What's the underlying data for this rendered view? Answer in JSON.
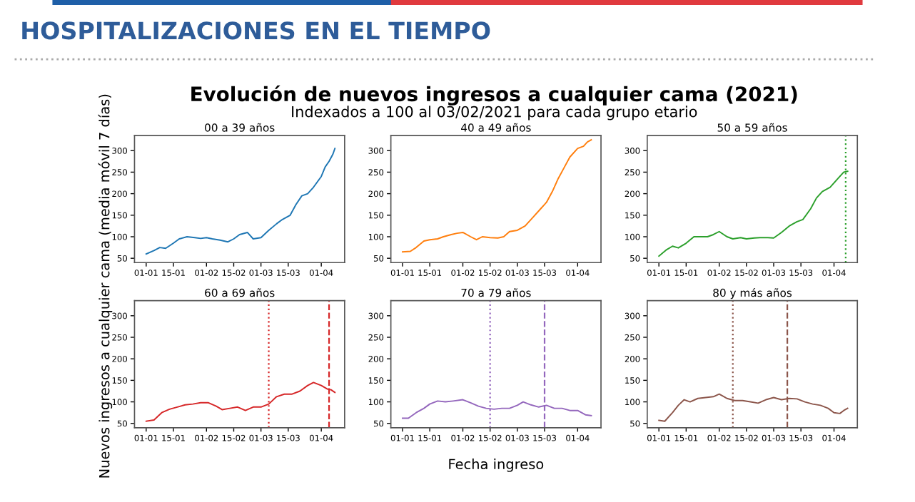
{
  "chart_data": [
    {
      "type": "line",
      "title": "00 a 39 años",
      "annotations": [
        "HOSPITALIZACIONES EN EL TIEMPO",
        "Evolución de nuevos ingresos a cualquier cama (2021)",
        "Indexados a 100 al 03/02/2021 para cada grupo etario"
      ],
      "ylabel": "Nuevos ingresos a cualquier cama (media móvil 7 días)",
      "x": [
        "2021-01-01",
        "2021-01-05",
        "2021-01-08",
        "2021-01-11",
        "2021-01-15",
        "2021-01-18",
        "2021-01-22",
        "2021-01-26",
        "2021-01-29",
        "2021-02-01",
        "2021-02-04",
        "2021-02-08",
        "2021-02-12",
        "2021-02-15",
        "2021-02-18",
        "2021-02-22",
        "2021-02-25",
        "2021-03-01",
        "2021-03-05",
        "2021-03-09",
        "2021-03-12",
        "2021-03-16",
        "2021-03-19",
        "2021-03-22",
        "2021-03-25",
        "2021-03-28",
        "2021-04-01",
        "2021-04-03",
        "2021-04-05",
        "2021-04-07",
        "2021-04-08"
      ],
      "series": [
        {
          "color": "#1f77b4",
          "values": [
            60,
            68,
            75,
            73,
            85,
            95,
            100,
            98,
            96,
            98,
            95,
            92,
            88,
            95,
            105,
            110,
            95,
            98,
            115,
            130,
            140,
            150,
            175,
            195,
            200,
            215,
            240,
            262,
            275,
            292,
            305
          ]
        }
      ],
      "xlim": [
        "2020-12-26",
        "2021-04-13"
      ],
      "xticks": [
        {
          "value": "2021-01-01",
          "label": "01-01"
        },
        {
          "value": "2021-01-15",
          "label": "15-01"
        },
        {
          "value": "2021-02-01",
          "label": "01-02"
        },
        {
          "value": "2021-02-15",
          "label": "15-02"
        },
        {
          "value": "2021-03-01",
          "label": "01-03"
        },
        {
          "value": "2021-03-15",
          "label": "15-03"
        },
        {
          "value": "2021-04-01",
          "label": "01-04"
        }
      ],
      "ylim": [
        40,
        335
      ],
      "yticks": [
        50,
        100,
        150,
        200,
        250,
        300
      ],
      "grid": false,
      "legend": false
    },
    {
      "type": "line",
      "title": "40 a 49 años",
      "x": [
        "2021-01-01",
        "2021-01-05",
        "2021-01-08",
        "2021-01-12",
        "2021-01-15",
        "2021-01-19",
        "2021-01-22",
        "2021-01-26",
        "2021-01-29",
        "2021-02-01",
        "2021-02-05",
        "2021-02-08",
        "2021-02-11",
        "2021-02-15",
        "2021-02-19",
        "2021-02-22",
        "2021-02-25",
        "2021-03-01",
        "2021-03-05",
        "2021-03-09",
        "2021-03-13",
        "2021-03-16",
        "2021-03-19",
        "2021-03-22",
        "2021-03-25",
        "2021-03-28",
        "2021-04-01",
        "2021-04-04",
        "2021-04-06",
        "2021-04-08"
      ],
      "series": [
        {
          "color": "#ff7f0e",
          "values": [
            65,
            66,
            75,
            90,
            93,
            95,
            100,
            105,
            108,
            110,
            100,
            93,
            100,
            98,
            97,
            100,
            112,
            115,
            125,
            145,
            165,
            180,
            205,
            235,
            260,
            285,
            305,
            310,
            320,
            325
          ]
        }
      ],
      "xlim": [
        "2020-12-26",
        "2021-04-13"
      ],
      "xticks": [
        {
          "value": "2021-01-01",
          "label": "01-01"
        },
        {
          "value": "2021-01-15",
          "label": "15-01"
        },
        {
          "value": "2021-02-01",
          "label": "01-02"
        },
        {
          "value": "2021-02-15",
          "label": "15-02"
        },
        {
          "value": "2021-03-01",
          "label": "01-03"
        },
        {
          "value": "2021-03-15",
          "label": "15-03"
        },
        {
          "value": "2021-04-01",
          "label": "01-04"
        }
      ],
      "ylim": [
        40,
        335
      ],
      "yticks": [
        50,
        100,
        150,
        200,
        250,
        300
      ],
      "grid": false,
      "legend": false
    },
    {
      "type": "line",
      "title": "50 a 59 años",
      "x": [
        "2021-01-01",
        "2021-01-05",
        "2021-01-08",
        "2021-01-11",
        "2021-01-15",
        "2021-01-19",
        "2021-01-22",
        "2021-01-26",
        "2021-01-29",
        "2021-02-01",
        "2021-02-05",
        "2021-02-08",
        "2021-02-12",
        "2021-02-15",
        "2021-02-19",
        "2021-02-22",
        "2021-02-26",
        "2021-03-01",
        "2021-03-05",
        "2021-03-09",
        "2021-03-13",
        "2021-03-16",
        "2021-03-20",
        "2021-03-23",
        "2021-03-26",
        "2021-03-30",
        "2021-04-03",
        "2021-04-06",
        "2021-04-08"
      ],
      "series": [
        {
          "color": "#2ca02c",
          "values": [
            55,
            70,
            78,
            74,
            85,
            100,
            100,
            100,
            105,
            112,
            100,
            95,
            98,
            95,
            97,
            98,
            98,
            97,
            110,
            125,
            135,
            140,
            165,
            190,
            205,
            215,
            235,
            250,
            252
          ]
        }
      ],
      "ref_lines": [
        {
          "axis": "x",
          "value": "2021-04-07",
          "label": null,
          "color": "#2ca02c",
          "line_style": "dotted"
        }
      ],
      "xlim": [
        "2020-12-26",
        "2021-04-13"
      ],
      "xticks": [
        {
          "value": "2021-01-01",
          "label": "01-01"
        },
        {
          "value": "2021-01-15",
          "label": "15-01"
        },
        {
          "value": "2021-02-01",
          "label": "01-02"
        },
        {
          "value": "2021-02-15",
          "label": "15-02"
        },
        {
          "value": "2021-03-01",
          "label": "01-03"
        },
        {
          "value": "2021-03-15",
          "label": "15-03"
        },
        {
          "value": "2021-04-01",
          "label": "01-04"
        }
      ],
      "ylim": [
        40,
        335
      ],
      "yticks": [
        50,
        100,
        150,
        200,
        250,
        300
      ],
      "grid": false,
      "legend": false
    },
    {
      "type": "line",
      "title": "60 a 69 años",
      "x": [
        "2021-01-01",
        "2021-01-05",
        "2021-01-09",
        "2021-01-13",
        "2021-01-17",
        "2021-01-21",
        "2021-01-25",
        "2021-01-29",
        "2021-02-02",
        "2021-02-06",
        "2021-02-09",
        "2021-02-13",
        "2021-02-17",
        "2021-02-21",
        "2021-02-25",
        "2021-03-01",
        "2021-03-05",
        "2021-03-09",
        "2021-03-13",
        "2021-03-17",
        "2021-03-21",
        "2021-03-25",
        "2021-03-28",
        "2021-04-01",
        "2021-04-04",
        "2021-04-06",
        "2021-04-08"
      ],
      "series": [
        {
          "color": "#d62728",
          "values": [
            55,
            58,
            75,
            83,
            88,
            93,
            95,
            98,
            98,
            90,
            82,
            85,
            88,
            80,
            88,
            88,
            95,
            112,
            118,
            118,
            125,
            138,
            145,
            138,
            130,
            128,
            122
          ]
        }
      ],
      "ref_lines": [
        {
          "axis": "x",
          "value": "2021-03-05",
          "label": null,
          "color": "#d62728",
          "line_style": "dotted"
        },
        {
          "axis": "x",
          "value": "2021-04-05",
          "label": null,
          "color": "#d62728",
          "line_style": "dashed"
        }
      ],
      "xlim": [
        "2020-12-26",
        "2021-04-13"
      ],
      "xticks": [
        {
          "value": "2021-01-01",
          "label": "01-01"
        },
        {
          "value": "2021-01-15",
          "label": "15-01"
        },
        {
          "value": "2021-02-01",
          "label": "01-02"
        },
        {
          "value": "2021-02-15",
          "label": "15-02"
        },
        {
          "value": "2021-03-01",
          "label": "01-03"
        },
        {
          "value": "2021-03-15",
          "label": "15-03"
        },
        {
          "value": "2021-04-01",
          "label": "01-04"
        }
      ],
      "ylim": [
        40,
        335
      ],
      "yticks": [
        50,
        100,
        150,
        200,
        250,
        300
      ],
      "grid": false,
      "legend": false
    },
    {
      "type": "line",
      "title": "70 a 79 años",
      "xlabel": "Fecha ingreso",
      "x": [
        "2021-01-01",
        "2021-01-04",
        "2021-01-08",
        "2021-01-12",
        "2021-01-15",
        "2021-01-19",
        "2021-01-23",
        "2021-01-27",
        "2021-02-01",
        "2021-02-05",
        "2021-02-09",
        "2021-02-13",
        "2021-02-17",
        "2021-02-21",
        "2021-02-25",
        "2021-03-01",
        "2021-03-04",
        "2021-03-08",
        "2021-03-12",
        "2021-03-16",
        "2021-03-20",
        "2021-03-24",
        "2021-03-28",
        "2021-04-01",
        "2021-04-05",
        "2021-04-08"
      ],
      "series": [
        {
          "color": "#9467bd",
          "values": [
            62,
            62,
            75,
            85,
            95,
            102,
            100,
            102,
            105,
            98,
            90,
            85,
            83,
            85,
            85,
            92,
            100,
            93,
            88,
            92,
            85,
            85,
            80,
            80,
            70,
            68
          ]
        }
      ],
      "ref_lines": [
        {
          "axis": "x",
          "value": "2021-02-15",
          "label": null,
          "color": "#9467bd",
          "line_style": "dotted"
        },
        {
          "axis": "x",
          "value": "2021-03-15",
          "label": null,
          "color": "#9467bd",
          "line_style": "dashed"
        }
      ],
      "xlim": [
        "2020-12-26",
        "2021-04-13"
      ],
      "xticks": [
        {
          "value": "2021-01-01",
          "label": "01-01"
        },
        {
          "value": "2021-01-15",
          "label": "15-01"
        },
        {
          "value": "2021-02-01",
          "label": "01-02"
        },
        {
          "value": "2021-02-15",
          "label": "15-02"
        },
        {
          "value": "2021-03-01",
          "label": "01-03"
        },
        {
          "value": "2021-03-15",
          "label": "15-03"
        },
        {
          "value": "2021-04-01",
          "label": "01-04"
        }
      ],
      "ylim": [
        40,
        335
      ],
      "yticks": [
        50,
        100,
        150,
        200,
        250,
        300
      ],
      "grid": false,
      "legend": false
    },
    {
      "type": "line",
      "title": "80 y más años",
      "x": [
        "2021-01-01",
        "2021-01-04",
        "2021-01-08",
        "2021-01-11",
        "2021-01-14",
        "2021-01-17",
        "2021-01-21",
        "2021-01-25",
        "2021-01-29",
        "2021-02-01",
        "2021-02-05",
        "2021-02-09",
        "2021-02-13",
        "2021-02-17",
        "2021-02-21",
        "2021-02-25",
        "2021-03-01",
        "2021-03-05",
        "2021-03-09",
        "2021-03-13",
        "2021-03-17",
        "2021-03-21",
        "2021-03-25",
        "2021-03-29",
        "2021-04-01",
        "2021-04-04",
        "2021-04-06",
        "2021-04-08"
      ],
      "series": [
        {
          "color": "#8c564b",
          "values": [
            57,
            55,
            75,
            92,
            105,
            100,
            108,
            110,
            112,
            118,
            108,
            103,
            103,
            100,
            97,
            105,
            110,
            105,
            108,
            107,
            100,
            95,
            92,
            85,
            75,
            73,
            80,
            85
          ]
        }
      ],
      "ref_lines": [
        {
          "axis": "x",
          "value": "2021-02-08",
          "label": null,
          "color": "#8c564b",
          "line_style": "dotted"
        },
        {
          "axis": "x",
          "value": "2021-03-08",
          "label": null,
          "color": "#8c564b",
          "line_style": "dashed"
        }
      ],
      "xlim": [
        "2020-12-26",
        "2021-04-13"
      ],
      "xticks": [
        {
          "value": "2021-01-01",
          "label": "01-01"
        },
        {
          "value": "2021-01-15",
          "label": "15-01"
        },
        {
          "value": "2021-02-01",
          "label": "01-02"
        },
        {
          "value": "2021-02-15",
          "label": "15-02"
        },
        {
          "value": "2021-03-01",
          "label": "01-03"
        },
        {
          "value": "2021-03-15",
          "label": "15-03"
        },
        {
          "value": "2021-04-01",
          "label": "01-04"
        }
      ],
      "ylim": [
        40,
        335
      ],
      "yticks": [
        50,
        100,
        150,
        200,
        250,
        300
      ],
      "grid": false,
      "legend": false
    }
  ]
}
